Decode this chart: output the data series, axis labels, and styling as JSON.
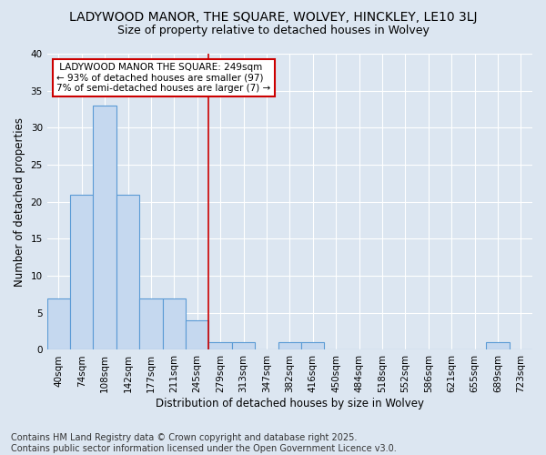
{
  "title1": "LADYWOOD MANOR, THE SQUARE, WOLVEY, HINCKLEY, LE10 3LJ",
  "title2": "Size of property relative to detached houses in Wolvey",
  "xlabel": "Distribution of detached houses by size in Wolvey",
  "ylabel": "Number of detached properties",
  "categories": [
    "40sqm",
    "74sqm",
    "108sqm",
    "142sqm",
    "177sqm",
    "211sqm",
    "245sqm",
    "279sqm",
    "313sqm",
    "347sqm",
    "382sqm",
    "416sqm",
    "450sqm",
    "484sqm",
    "518sqm",
    "552sqm",
    "586sqm",
    "621sqm",
    "655sqm",
    "689sqm",
    "723sqm"
  ],
  "values": [
    7,
    21,
    33,
    21,
    7,
    7,
    4,
    1,
    1,
    0,
    1,
    1,
    0,
    0,
    0,
    0,
    0,
    0,
    0,
    1,
    0
  ],
  "bar_color": "#c5d8ef",
  "bar_edge_color": "#5b9bd5",
  "red_line_index": 6.5,
  "red_line_color": "#cc0000",
  "annotation_line1": " LADYWOOD MANOR THE SQUARE: 249sqm",
  "annotation_line2": "← 93% of detached houses are smaller (97)",
  "annotation_line3": "7% of semi-detached houses are larger (7) →",
  "annotation_box_color": "#ffffff",
  "annotation_box_edge": "#cc0000",
  "ylim": [
    0,
    40
  ],
  "yticks": [
    0,
    5,
    10,
    15,
    20,
    25,
    30,
    35,
    40
  ],
  "background_color": "#dce6f1",
  "plot_bg_color": "#dce6f1",
  "footer_line1": "Contains HM Land Registry data © Crown copyright and database right 2025.",
  "footer_line2": "Contains public sector information licensed under the Open Government Licence v3.0.",
  "title_fontsize": 10,
  "subtitle_fontsize": 9,
  "axis_label_fontsize": 8.5,
  "tick_fontsize": 7.5,
  "footer_fontsize": 7
}
